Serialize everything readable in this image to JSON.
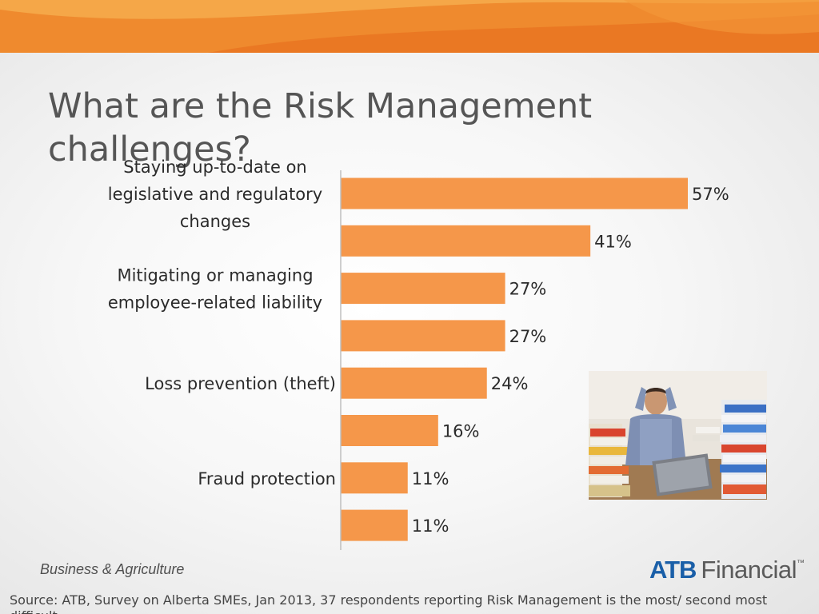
{
  "slide": {
    "title": "What are the Risk Management challenges?",
    "footer_division": "Business & Agriculture",
    "brand": {
      "mark": "ATB",
      "word": "Financial",
      "tm": "™"
    },
    "source": "Source: ATB, Survey on Alberta SMEs, Jan 2013, 37 respondents reporting Risk Management is the most/ second most difficult"
  },
  "colors": {
    "bar": "#f5974a",
    "header_orange": "#ee8530",
    "title_text": "#555555",
    "brand_blue": "#1a5fa8"
  },
  "photo": {
    "icon": "stressed-office-worker-photo"
  },
  "chart_data": {
    "type": "bar",
    "orientation": "horizontal",
    "categories": [
      "Staying up-to-date on legislative and regulatory changes",
      "",
      "Mitigating or managing employee-related liability",
      "",
      "Loss prevention (theft)",
      "",
      "Fraud protection",
      ""
    ],
    "values": [
      57,
      41,
      27,
      27,
      24,
      16,
      11,
      11
    ],
    "value_labels": [
      "57%",
      "41%",
      "27%",
      "27%",
      "24%",
      "16%",
      "11%",
      "11%"
    ],
    "unit": "%",
    "xlim": [
      0,
      65
    ],
    "grid": false,
    "legend": "none",
    "title": "",
    "xlabel": "",
    "ylabel": ""
  }
}
